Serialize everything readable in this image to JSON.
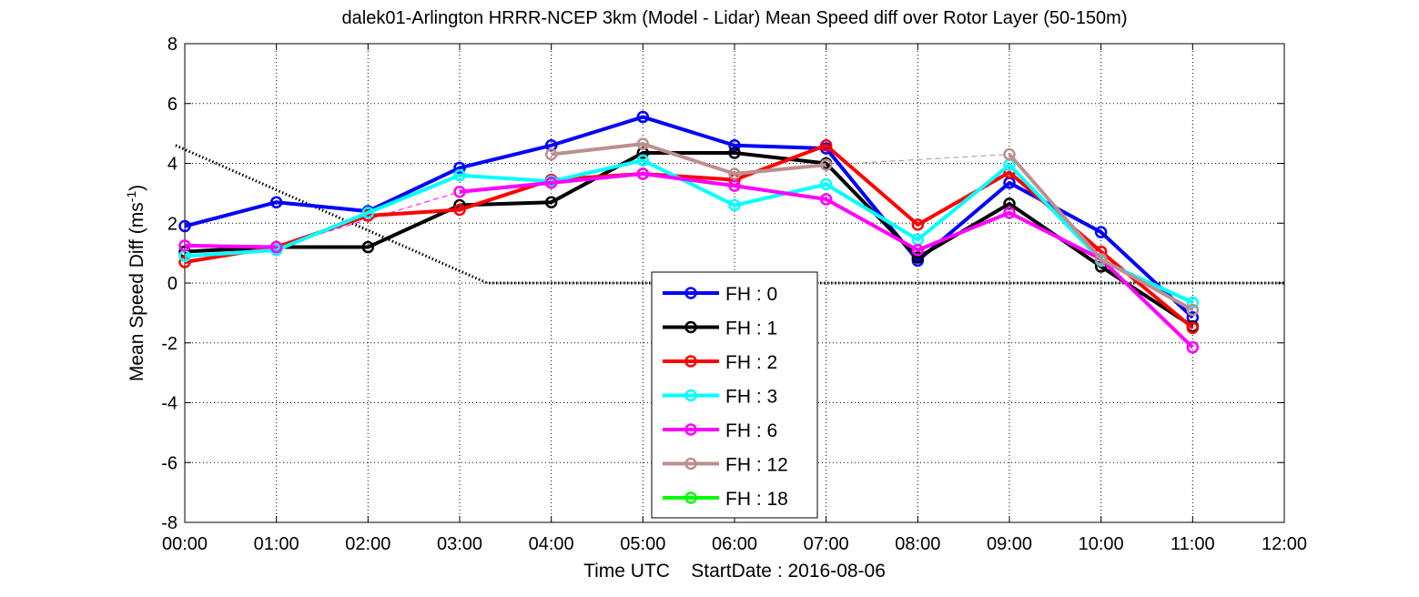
{
  "chart_data": {
    "type": "line",
    "title": "dalek01-Arlington HRRR-NCEP 3km (Model - Lidar) Mean Speed diff over Rotor Layer (50-150m)",
    "xlabel": "Time UTC    StartDate : 2016-08-06",
    "ylabel_main": "Mean Speed Diff (ms",
    "ylabel_sup": "-1",
    "ylabel_end": ")",
    "xlim": [
      0,
      12
    ],
    "ylim": [
      -8,
      8
    ],
    "x_ticks": [
      0,
      1,
      2,
      3,
      4,
      5,
      6,
      7,
      8,
      9,
      10,
      11,
      12
    ],
    "x_tick_labels": [
      "00:00",
      "01:00",
      "02:00",
      "03:00",
      "04:00",
      "05:00",
      "06:00",
      "07:00",
      "08:00",
      "09:00",
      "10:00",
      "11:00",
      "12:00"
    ],
    "y_ticks": [
      -8,
      -6,
      -4,
      -2,
      0,
      2,
      4,
      6,
      8
    ],
    "y_tick_labels": [
      "-8",
      "-6",
      "-4",
      "-2",
      "0",
      "2",
      "4",
      "6",
      "8"
    ],
    "grid": true,
    "legend_position": "bottom-center",
    "series": [
      {
        "name": "FH : 0",
        "color": "#0000ff",
        "x": [
          0,
          1,
          2,
          3,
          4,
          5,
          6,
          7,
          8,
          9,
          10,
          11
        ],
        "values": [
          1.9,
          2.7,
          2.4,
          3.85,
          4.6,
          5.55,
          4.6,
          4.5,
          0.75,
          3.35,
          1.7,
          -1.15
        ]
      },
      {
        "name": "FH : 1",
        "color": "#000000",
        "x": [
          0,
          1,
          2,
          3,
          4,
          5,
          6,
          7,
          8,
          9,
          10,
          11
        ],
        "values": [
          1.05,
          1.2,
          1.2,
          2.6,
          2.7,
          4.35,
          4.35,
          4.0,
          0.85,
          2.65,
          0.55,
          -1.45
        ]
      },
      {
        "name": "FH : 2",
        "color": "#ff0000",
        "x": [
          0,
          1,
          2,
          3,
          4,
          5,
          6,
          7,
          8,
          9,
          10,
          11
        ],
        "values": [
          0.7,
          1.2,
          2.25,
          2.45,
          3.45,
          3.65,
          3.45,
          4.6,
          1.95,
          3.7,
          1.05,
          -1.5
        ]
      },
      {
        "name": "FH : 3",
        "color": "#00ffff",
        "x": [
          0,
          1,
          2,
          3,
          4,
          5,
          6,
          7,
          8,
          9,
          10,
          11
        ],
        "values": [
          0.9,
          1.1,
          2.35,
          3.6,
          3.4,
          4.1,
          2.6,
          3.3,
          1.45,
          3.95,
          0.75,
          -0.65
        ]
      },
      {
        "name": "FH : 6",
        "color": "#ff00ff",
        "x": [
          0,
          1,
          2,
          3,
          4,
          5,
          6,
          7,
          8,
          9,
          10,
          11
        ],
        "values": [
          1.25,
          1.2,
          null,
          3.05,
          3.35,
          3.65,
          3.25,
          2.8,
          1.1,
          2.35,
          0.8,
          -2.15
        ]
      },
      {
        "name": "FH : 12",
        "color": "#bc8f8f",
        "x": [
          0,
          1,
          2,
          3,
          4,
          5,
          6,
          7,
          8,
          9,
          10,
          11
        ],
        "values": [
          null,
          null,
          null,
          null,
          4.3,
          4.65,
          3.65,
          3.95,
          null,
          4.3,
          0.8,
          -0.9
        ]
      },
      {
        "name": "FH : 18",
        "color": "#00ff00",
        "x": [],
        "values": []
      }
    ],
    "dashed_lines": [
      {
        "color": "#ff00ff",
        "x": [
          1,
          3
        ],
        "y": [
          1.2,
          3.05
        ]
      },
      {
        "color": "#bc8f8f",
        "x": [
          7,
          9
        ],
        "y": [
          3.95,
          4.3
        ]
      }
    ],
    "dotted_line": {
      "color": "#000000",
      "x": [
        -0.1,
        3.3,
        12
      ],
      "y": [
        4.6,
        0,
        0
      ]
    }
  }
}
